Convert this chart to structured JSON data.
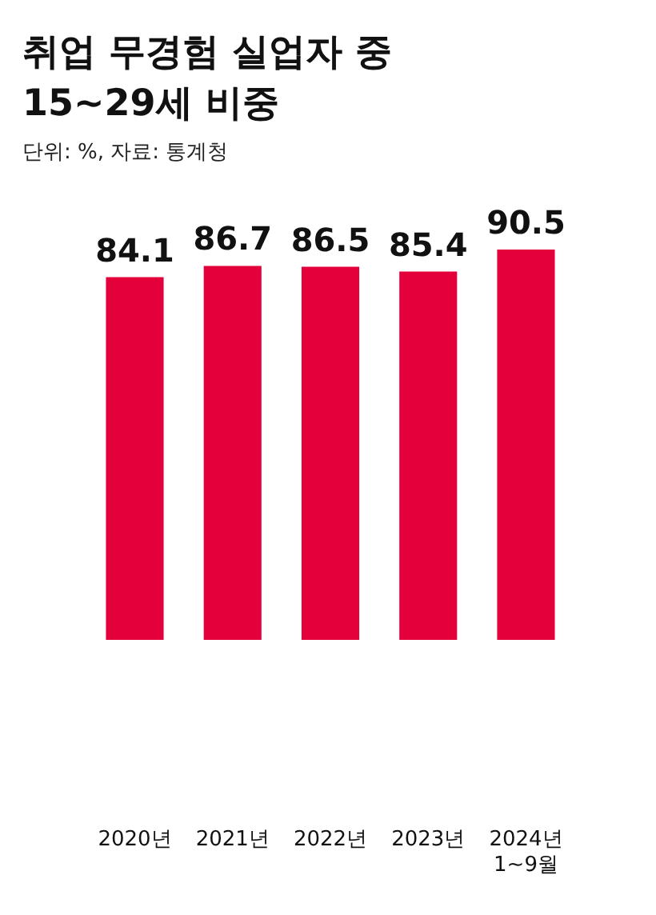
{
  "chart_data": {
    "type": "bar",
    "title": "취업 무경험 실업자 중\n15~29세 비중",
    "subtitle": "단위: %, 자료: 통계청",
    "categories": [
      "2020년",
      "2021년",
      "2022년",
      "2023년",
      "2024년\n1~9월"
    ],
    "values": [
      84.1,
      86.7,
      86.5,
      85.4,
      90.5
    ],
    "color": "#e4003a",
    "data_labels": true,
    "tick_labels": "x"
  }
}
